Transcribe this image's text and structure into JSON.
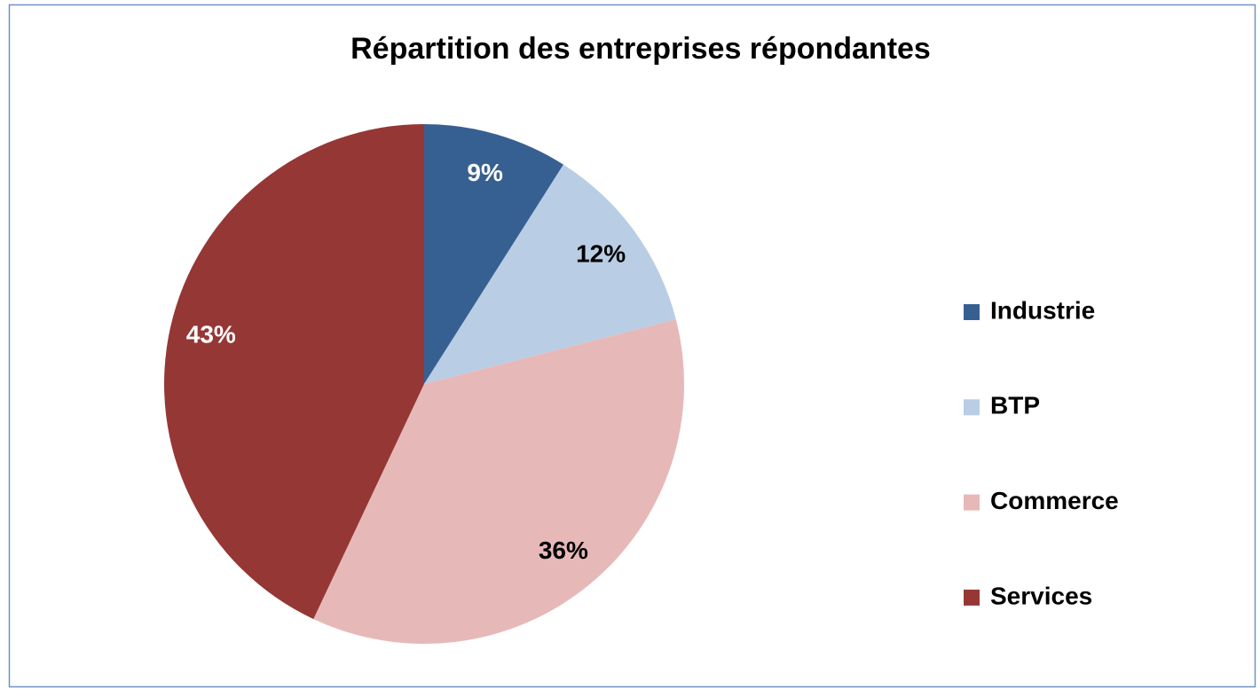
{
  "chart_data": {
    "type": "pie",
    "title": "Répartition des entreprises répondantes",
    "categories": [
      "Industrie",
      "BTP",
      "Commerce",
      "Services"
    ],
    "values": [
      9,
      12,
      36,
      43
    ],
    "value_labels": [
      "9%",
      "12%",
      "36%",
      "43%"
    ],
    "colors": [
      "#376092",
      "#b9cde5",
      "#e6b9b8",
      "#953735"
    ],
    "legend": "right"
  }
}
